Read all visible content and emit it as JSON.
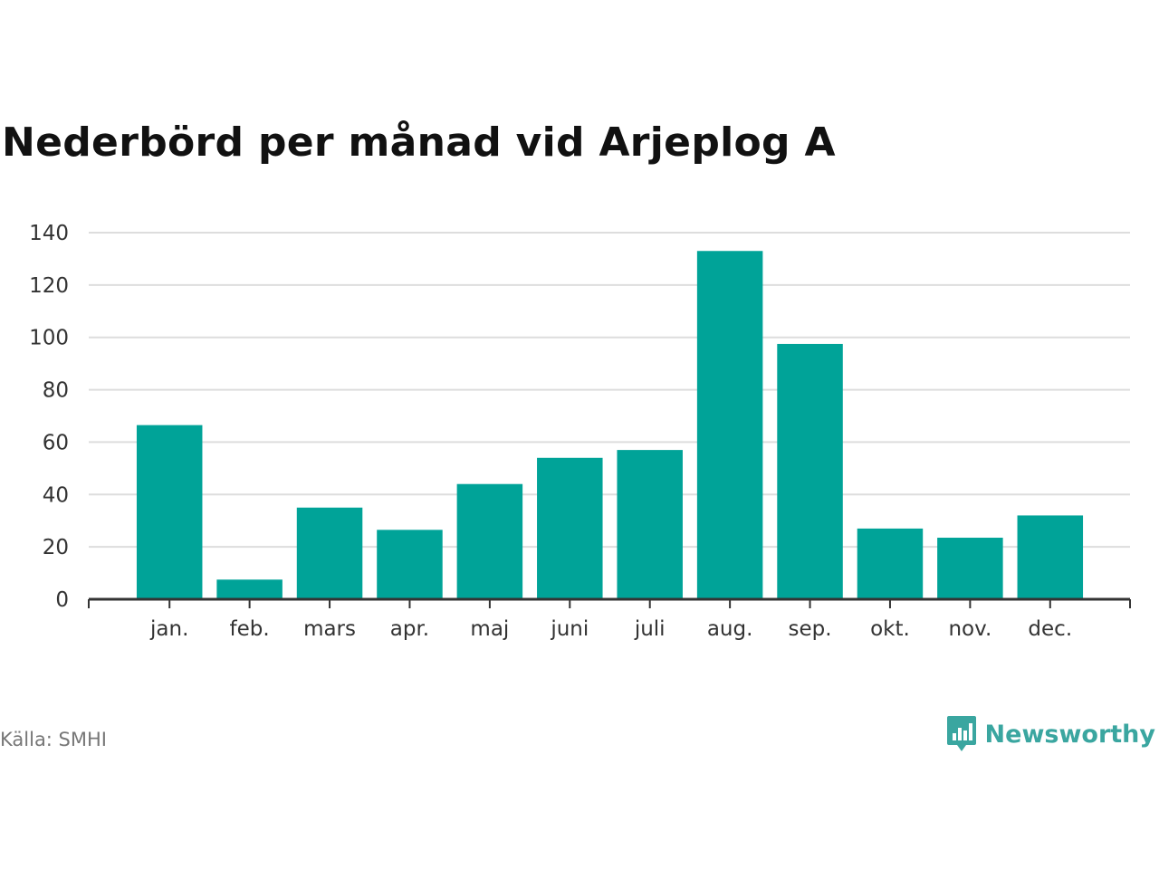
{
  "title": "Nederbörd per månad vid Arjeplog A",
  "source": "Källa: SMHI",
  "brand": {
    "name": "Newsworthy",
    "icon": "bar-chart-speech-bubble-icon",
    "color": "#3aa6a0"
  },
  "colors": {
    "bar": "#00a398",
    "grid": "#dddddd",
    "axis": "#333333"
  },
  "chart_data": {
    "type": "bar",
    "categories": [
      "jan.",
      "feb.",
      "mars",
      "apr.",
      "maj",
      "juni",
      "juli",
      "aug.",
      "sep.",
      "okt.",
      "nov.",
      "dec."
    ],
    "values": [
      66.5,
      7.5,
      35,
      26.5,
      44,
      54,
      57,
      133,
      97.5,
      27,
      23.5,
      32
    ],
    "title": "Nederbörd per månad vid Arjeplog A",
    "xlabel": "",
    "ylabel": "",
    "ylim": [
      0,
      140
    ],
    "yticks": [
      "0",
      "20",
      "40",
      "60",
      "80",
      "100",
      "120",
      "140"
    ],
    "grid": true,
    "legend": "none"
  }
}
